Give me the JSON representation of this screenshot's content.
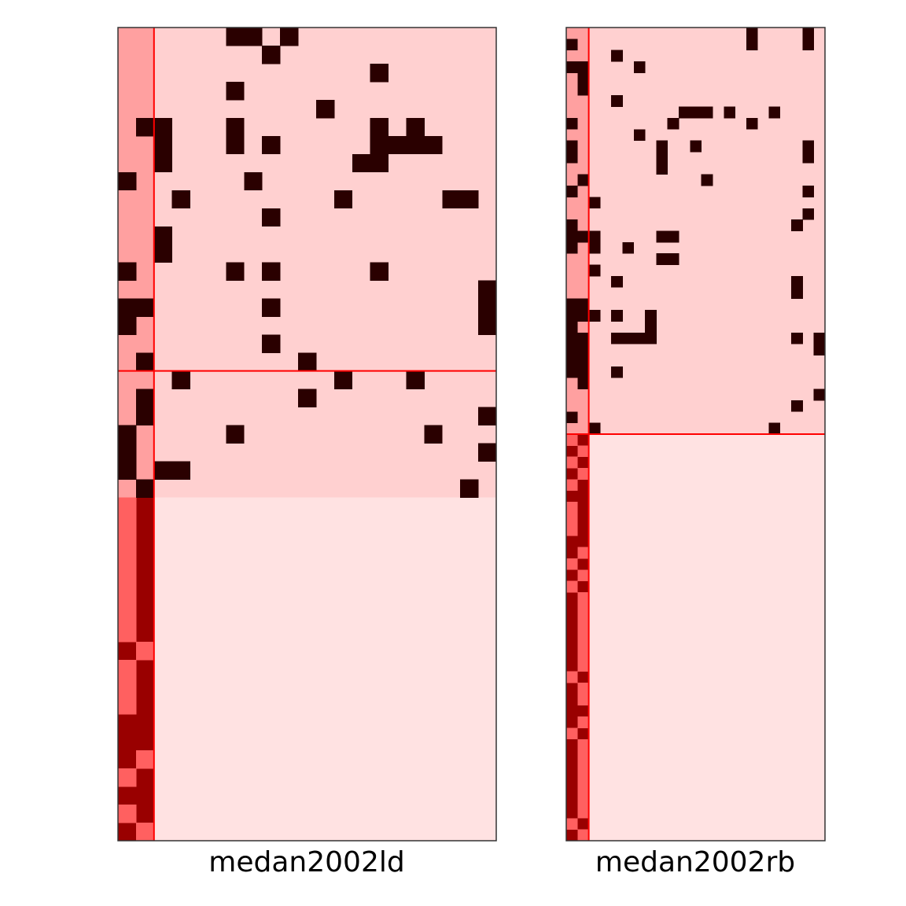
{
  "colors": {
    "background": "#ffffff",
    "frame": "#333333",
    "divider": "#ff0000",
    "present": "#2a0000",
    "block_top_left": "#ffa0a0",
    "block_top": "#ffd0d0",
    "block_bottom_left_light": "#ff6060",
    "block_bottom_left_dark": "#990000",
    "block_bottom": "#ffe2e2"
  },
  "chart_data": [
    {
      "type": "heatmap",
      "label": "medan2002ld",
      "n_rows": 45,
      "n_cols": 21,
      "n_left_cols": 2,
      "n_top_rows": 26,
      "divider_row": 19,
      "top_left_cells": [
        [
          8,
          0
        ],
        [
          13,
          0
        ],
        [
          15,
          0
        ],
        [
          15,
          1
        ],
        [
          16,
          0
        ],
        [
          18,
          1
        ],
        [
          5,
          1
        ],
        [
          20,
          1
        ],
        [
          21,
          1
        ],
        [
          22,
          0
        ],
        [
          23,
          0
        ],
        [
          24,
          0
        ]
      ],
      "bottom_left_light_cells": [
        [
          26,
          0
        ],
        [
          27,
          0
        ],
        [
          28,
          0
        ],
        [
          29,
          0
        ],
        [
          30,
          0
        ],
        [
          31,
          0
        ],
        [
          32,
          0
        ],
        [
          33,
          0
        ],
        [
          34,
          1
        ],
        [
          35,
          0
        ],
        [
          36,
          0
        ],
        [
          37,
          0
        ],
        [
          40,
          1
        ],
        [
          41,
          0
        ],
        [
          43,
          0
        ],
        [
          44,
          1
        ]
      ],
      "top_cells": [
        [
          0,
          6
        ],
        [
          0,
          7
        ],
        [
          0,
          9
        ],
        [
          1,
          8
        ],
        [
          2,
          14
        ],
        [
          3,
          6
        ],
        [
          4,
          11
        ],
        [
          5,
          2
        ],
        [
          5,
          6
        ],
        [
          5,
          14
        ],
        [
          5,
          16
        ],
        [
          6,
          2
        ],
        [
          6,
          6
        ],
        [
          6,
          8
        ],
        [
          6,
          14
        ],
        [
          6,
          15
        ],
        [
          6,
          16
        ],
        [
          6,
          17
        ],
        [
          7,
          2
        ],
        [
          7,
          13
        ],
        [
          7,
          14
        ],
        [
          8,
          7
        ],
        [
          9,
          3
        ],
        [
          9,
          12
        ],
        [
          9,
          18
        ],
        [
          9,
          19
        ],
        [
          10,
          8
        ],
        [
          11,
          2
        ],
        [
          12,
          2
        ],
        [
          13,
          6
        ],
        [
          13,
          8
        ],
        [
          13,
          14
        ],
        [
          14,
          20
        ],
        [
          15,
          8
        ],
        [
          15,
          20
        ],
        [
          16,
          20
        ],
        [
          17,
          8
        ],
        [
          18,
          10
        ],
        [
          19,
          3
        ],
        [
          19,
          12
        ],
        [
          19,
          16
        ],
        [
          20,
          10
        ],
        [
          21,
          20
        ],
        [
          22,
          6
        ],
        [
          22,
          17
        ],
        [
          23,
          20
        ],
        [
          24,
          0
        ],
        [
          24,
          2
        ],
        [
          24,
          3
        ],
        [
          25,
          1
        ],
        [
          25,
          19
        ]
      ]
    },
    {
      "type": "heatmap",
      "label": "medan2002rb",
      "n_rows": 72,
      "n_cols": 23,
      "n_left_cols": 2,
      "n_top_rows": 36,
      "divider_row": 36,
      "top_left_cells": [
        [
          1,
          0
        ],
        [
          3,
          0
        ],
        [
          8,
          0
        ],
        [
          10,
          0
        ],
        [
          11,
          0
        ],
        [
          14,
          0
        ],
        [
          17,
          0
        ],
        [
          18,
          0
        ],
        [
          19,
          0
        ],
        [
          24,
          0
        ],
        [
          24,
          1
        ],
        [
          25,
          0
        ],
        [
          25,
          1
        ],
        [
          26,
          0
        ],
        [
          27,
          0
        ],
        [
          27,
          1
        ],
        [
          28,
          0
        ],
        [
          28,
          1
        ],
        [
          29,
          0
        ],
        [
          29,
          1
        ],
        [
          30,
          0
        ],
        [
          30,
          1
        ],
        [
          34,
          0
        ]
      ],
      "bottom_left_light_cells": [
        [
          36,
          0
        ],
        [
          37,
          1
        ],
        [
          38,
          0
        ],
        [
          39,
          1
        ],
        [
          40,
          0
        ],
        [
          42,
          0
        ],
        [
          43,
          0
        ],
        [
          44,
          0
        ],
        [
          46,
          1
        ],
        [
          47,
          0
        ],
        [
          48,
          1
        ],
        [
          49,
          0
        ],
        [
          50,
          1
        ],
        [
          51,
          1
        ],
        [
          52,
          1
        ],
        [
          53,
          1
        ],
        [
          54,
          1
        ],
        [
          55,
          1
        ],
        [
          56,
          1
        ],
        [
          57,
          0
        ],
        [
          58,
          1
        ],
        [
          59,
          1
        ],
        [
          61,
          1
        ],
        [
          62,
          0
        ],
        [
          63,
          1
        ],
        [
          64,
          1
        ],
        [
          65,
          1
        ],
        [
          66,
          1
        ],
        [
          67,
          1
        ],
        [
          68,
          1
        ],
        [
          69,
          1
        ],
        [
          70,
          0
        ],
        [
          71,
          1
        ]
      ],
      "top_cells": [
        [
          0,
          16
        ],
        [
          0,
          21
        ],
        [
          1,
          16
        ],
        [
          1,
          21
        ],
        [
          2,
          4
        ],
        [
          3,
          6
        ],
        [
          3,
          1
        ],
        [
          4,
          1
        ],
        [
          5,
          1
        ],
        [
          6,
          4
        ],
        [
          7,
          10
        ],
        [
          7,
          11
        ],
        [
          7,
          12
        ],
        [
          7,
          14
        ],
        [
          7,
          18
        ],
        [
          8,
          9
        ],
        [
          8,
          16
        ],
        [
          9,
          6
        ],
        [
          10,
          8
        ],
        [
          10,
          11
        ],
        [
          11,
          8
        ],
        [
          12,
          8
        ],
        [
          13,
          1
        ],
        [
          13,
          1
        ],
        [
          10,
          21
        ],
        [
          11,
          21
        ],
        [
          13,
          12
        ],
        [
          14,
          21
        ],
        [
          15,
          2
        ],
        [
          16,
          21
        ],
        [
          17,
          20
        ],
        [
          18,
          1
        ],
        [
          18,
          2
        ],
        [
          18,
          8
        ],
        [
          18,
          9
        ],
        [
          19,
          2
        ],
        [
          19,
          5
        ],
        [
          20,
          8
        ],
        [
          20,
          9
        ],
        [
          21,
          2
        ],
        [
          22,
          4
        ],
        [
          22,
          20
        ],
        [
          23,
          20
        ],
        [
          25,
          1
        ],
        [
          25,
          2
        ],
        [
          25,
          4
        ],
        [
          25,
          7
        ],
        [
          26,
          7
        ],
        [
          27,
          1
        ],
        [
          27,
          4
        ],
        [
          27,
          5
        ],
        [
          27,
          6
        ],
        [
          27,
          7
        ],
        [
          27,
          20
        ],
        [
          27,
          22
        ],
        [
          28,
          22
        ],
        [
          29,
          1
        ],
        [
          30,
          1
        ],
        [
          30,
          4
        ],
        [
          31,
          1
        ],
        [
          32,
          22
        ],
        [
          33,
          20
        ],
        [
          35,
          2
        ],
        [
          35,
          18
        ]
      ]
    }
  ]
}
